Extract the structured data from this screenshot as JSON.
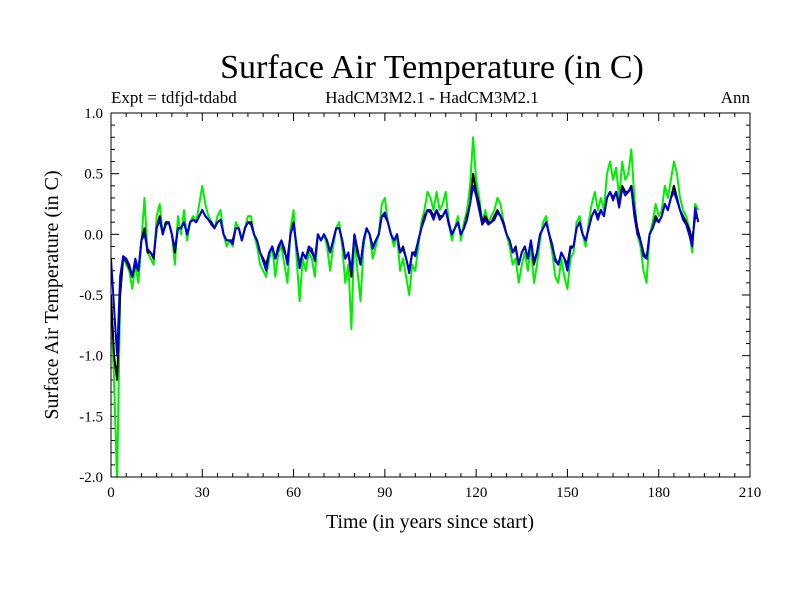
{
  "chart_data": {
    "type": "line",
    "title": "Surface Air Temperature (in C)",
    "subtitle_left": "Expt = tdfjd-tdabd",
    "subtitle_center": "HadCM3M2.1 - HadCM3M2.1",
    "subtitle_right": "Ann",
    "xlabel": "Time (in years since start)",
    "ylabel": "Surface Air Temperature (in C)",
    "xlim": [
      0,
      210
    ],
    "ylim": [
      -2.0,
      1.0
    ],
    "xticks": [
      0,
      30,
      60,
      90,
      120,
      150,
      180,
      210
    ],
    "xtick_labels": [
      "0",
      "30",
      "60",
      "90",
      "120",
      "150",
      "180",
      "210"
    ],
    "yticks": [
      -2.0,
      -1.5,
      -1.0,
      -0.5,
      0.0,
      0.5,
      1.0
    ],
    "ytick_labels": [
      "-2.0",
      "-1.5",
      "-1.0",
      "-0.5",
      "0.0",
      "0.5",
      "1.0"
    ],
    "series": [
      {
        "name": "green",
        "color": "#00ee00",
        "x_start": 0,
        "x_step": 1,
        "values": [
          -0.55,
          -1.2,
          -2.05,
          -0.5,
          -0.18,
          -0.25,
          -0.3,
          -0.45,
          -0.25,
          -0.4,
          -0.05,
          0.3,
          -0.15,
          -0.2,
          -0.25,
          0.15,
          0.25,
          0.0,
          0.1,
          0.1,
          0.0,
          -0.25,
          0.15,
          0.0,
          0.2,
          -0.05,
          0.1,
          0.15,
          0.1,
          0.25,
          0.4,
          0.25,
          0.15,
          0.1,
          0.05,
          0.15,
          0.2,
          0.0,
          -0.1,
          -0.05,
          -0.1,
          0.1,
          0.05,
          -0.05,
          0.05,
          0.15,
          0.15,
          0.0,
          -0.1,
          -0.25,
          -0.3,
          -0.35,
          -0.2,
          -0.1,
          -0.35,
          -0.15,
          -0.1,
          -0.25,
          -0.4,
          0.05,
          0.2,
          -0.2,
          -0.55,
          -0.2,
          -0.3,
          -0.15,
          -0.2,
          -0.35,
          0.0,
          -0.05,
          0.0,
          -0.1,
          -0.3,
          -0.1,
          0.05,
          0.1,
          -0.1,
          -0.4,
          -0.25,
          -0.78,
          0.0,
          -0.3,
          -0.55,
          -0.1,
          0.05,
          0.0,
          -0.2,
          -0.1,
          0.0,
          0.25,
          0.3,
          0.1,
          0.0,
          -0.1,
          0.0,
          -0.3,
          -0.2,
          -0.35,
          -0.5,
          -0.25,
          -0.3,
          -0.1,
          0.1,
          0.2,
          0.35,
          0.3,
          0.2,
          0.35,
          0.2,
          0.25,
          0.35,
          0.1,
          -0.05,
          0.05,
          0.15,
          -0.05,
          0.1,
          0.2,
          0.4,
          0.8,
          0.45,
          0.3,
          0.1,
          0.2,
          0.1,
          0.15,
          0.2,
          0.3,
          0.25,
          0.1,
          0.0,
          -0.1,
          -0.25,
          -0.2,
          -0.4,
          -0.25,
          -0.15,
          -0.3,
          -0.1,
          -0.4,
          -0.25,
          -0.05,
          0.1,
          0.15,
          0.0,
          -0.15,
          -0.35,
          -0.4,
          -0.2,
          -0.35,
          -0.45,
          -0.2,
          -0.15,
          0.1,
          0.15,
          0.0,
          -0.1,
          0.1,
          0.25,
          0.35,
          0.2,
          0.3,
          0.2,
          0.5,
          0.6,
          0.45,
          0.55,
          0.3,
          0.6,
          0.45,
          0.5,
          0.7,
          0.3,
          0.0,
          -0.1,
          -0.3,
          -0.4,
          0.0,
          0.1,
          0.25,
          0.15,
          0.2,
          0.4,
          0.3,
          0.45,
          0.6,
          0.5,
          0.3,
          0.2,
          0.15,
          0.05,
          -0.15,
          0.25,
          0.2
        ]
      },
      {
        "name": "black",
        "color": "#000000",
        "x_start": 0,
        "x_step": 1,
        "values": [
          -0.5,
          -1.0,
          -1.2,
          -0.5,
          -0.2,
          -0.22,
          -0.28,
          -0.35,
          -0.25,
          -0.3,
          -0.05,
          0.05,
          -0.15,
          -0.15,
          -0.2,
          0.05,
          0.15,
          0.0,
          0.1,
          0.1,
          0.0,
          -0.15,
          0.05,
          0.05,
          0.1,
          0.0,
          0.1,
          0.12,
          0.1,
          0.15,
          0.2,
          0.15,
          0.12,
          0.1,
          0.05,
          0.1,
          0.12,
          0.0,
          -0.05,
          -0.05,
          -0.05,
          0.05,
          0.05,
          -0.05,
          0.05,
          0.1,
          0.1,
          0.0,
          -0.05,
          -0.15,
          -0.2,
          -0.25,
          -0.15,
          -0.1,
          -0.2,
          -0.1,
          -0.05,
          -0.15,
          -0.2,
          0.0,
          0.1,
          -0.1,
          -0.25,
          -0.15,
          -0.2,
          -0.12,
          -0.15,
          -0.2,
          0.0,
          -0.05,
          0.0,
          -0.05,
          -0.15,
          -0.05,
          0.05,
          0.05,
          -0.05,
          -0.2,
          -0.15,
          -0.35,
          0.0,
          -0.15,
          -0.25,
          -0.05,
          0.05,
          0.0,
          -0.1,
          -0.05,
          0.0,
          0.15,
          0.15,
          0.1,
          0.0,
          -0.05,
          0.0,
          -0.15,
          -0.1,
          -0.2,
          -0.3,
          -0.15,
          -0.15,
          -0.05,
          0.05,
          0.15,
          0.2,
          0.2,
          0.15,
          0.2,
          0.15,
          0.15,
          0.2,
          0.1,
          0.0,
          0.05,
          0.1,
          0.0,
          0.05,
          0.15,
          0.25,
          0.5,
          0.35,
          0.25,
          0.1,
          0.15,
          0.1,
          0.1,
          0.15,
          0.2,
          0.15,
          0.1,
          0.0,
          -0.05,
          -0.15,
          -0.1,
          -0.25,
          -0.15,
          -0.1,
          -0.2,
          -0.05,
          -0.25,
          -0.15,
          0.0,
          0.05,
          0.1,
          0.0,
          -0.1,
          -0.2,
          -0.25,
          -0.15,
          -0.2,
          -0.25,
          -0.1,
          -0.1,
          0.05,
          0.1,
          0.0,
          -0.05,
          0.05,
          0.15,
          0.2,
          0.15,
          0.2,
          0.15,
          0.3,
          0.35,
          0.3,
          0.35,
          0.25,
          0.4,
          0.35,
          0.35,
          0.4,
          0.2,
          0.05,
          -0.05,
          -0.15,
          -0.2,
          0.0,
          0.05,
          0.15,
          0.1,
          0.15,
          0.25,
          0.2,
          0.3,
          0.4,
          0.3,
          0.2,
          0.15,
          0.1,
          0.05,
          -0.05,
          0.15,
          0.12
        ]
      },
      {
        "name": "blue",
        "color": "#0000dd",
        "x_start": 0,
        "x_step": 1,
        "values": [
          -0.2,
          -0.6,
          -1.0,
          -0.35,
          -0.18,
          -0.2,
          -0.25,
          -0.35,
          -0.2,
          -0.3,
          -0.05,
          0.0,
          -0.12,
          -0.15,
          -0.18,
          0.05,
          0.12,
          0.0,
          0.08,
          0.1,
          0.0,
          -0.12,
          0.05,
          0.05,
          0.1,
          0.0,
          0.1,
          0.12,
          0.1,
          0.15,
          0.2,
          0.15,
          0.12,
          0.08,
          0.05,
          0.1,
          0.12,
          0.0,
          -0.05,
          -0.05,
          -0.08,
          0.05,
          0.05,
          -0.05,
          0.05,
          0.1,
          0.08,
          0.0,
          -0.05,
          -0.15,
          -0.22,
          -0.3,
          -0.15,
          -0.1,
          -0.2,
          -0.12,
          -0.05,
          -0.12,
          -0.25,
          0.0,
          0.08,
          -0.1,
          -0.28,
          -0.15,
          -0.2,
          -0.1,
          -0.12,
          -0.22,
          0.0,
          -0.05,
          0.0,
          -0.05,
          -0.15,
          -0.05,
          0.05,
          0.05,
          -0.05,
          -0.2,
          -0.15,
          -0.3,
          0.0,
          -0.12,
          -0.25,
          -0.05,
          0.05,
          0.0,
          -0.12,
          -0.05,
          0.0,
          0.15,
          0.18,
          0.1,
          0.0,
          -0.05,
          0.0,
          -0.15,
          -0.12,
          -0.2,
          -0.32,
          -0.15,
          -0.18,
          -0.05,
          0.05,
          0.12,
          0.2,
          0.18,
          0.12,
          0.2,
          0.12,
          0.15,
          0.2,
          0.08,
          0.0,
          0.05,
          0.1,
          0.0,
          0.05,
          0.12,
          0.25,
          0.4,
          0.32,
          0.2,
          0.08,
          0.12,
          0.08,
          0.1,
          0.12,
          0.18,
          0.15,
          0.08,
          0.0,
          -0.05,
          -0.15,
          -0.12,
          -0.25,
          -0.15,
          -0.1,
          -0.2,
          -0.05,
          -0.22,
          -0.15,
          0.0,
          0.05,
          0.1,
          0.0,
          -0.08,
          -0.22,
          -0.25,
          -0.15,
          -0.2,
          -0.3,
          -0.12,
          -0.1,
          0.05,
          0.1,
          0.0,
          -0.05,
          0.05,
          0.15,
          0.2,
          0.12,
          0.2,
          0.15,
          0.3,
          0.35,
          0.28,
          0.35,
          0.22,
          0.38,
          0.32,
          0.35,
          0.38,
          0.15,
          0.0,
          -0.05,
          -0.18,
          -0.2,
          0.0,
          0.05,
          0.12,
          0.1,
          0.15,
          0.25,
          0.2,
          0.3,
          0.35,
          0.28,
          0.2,
          0.12,
          0.08,
          0.0,
          -0.1,
          0.22,
          0.1
        ]
      }
    ]
  }
}
